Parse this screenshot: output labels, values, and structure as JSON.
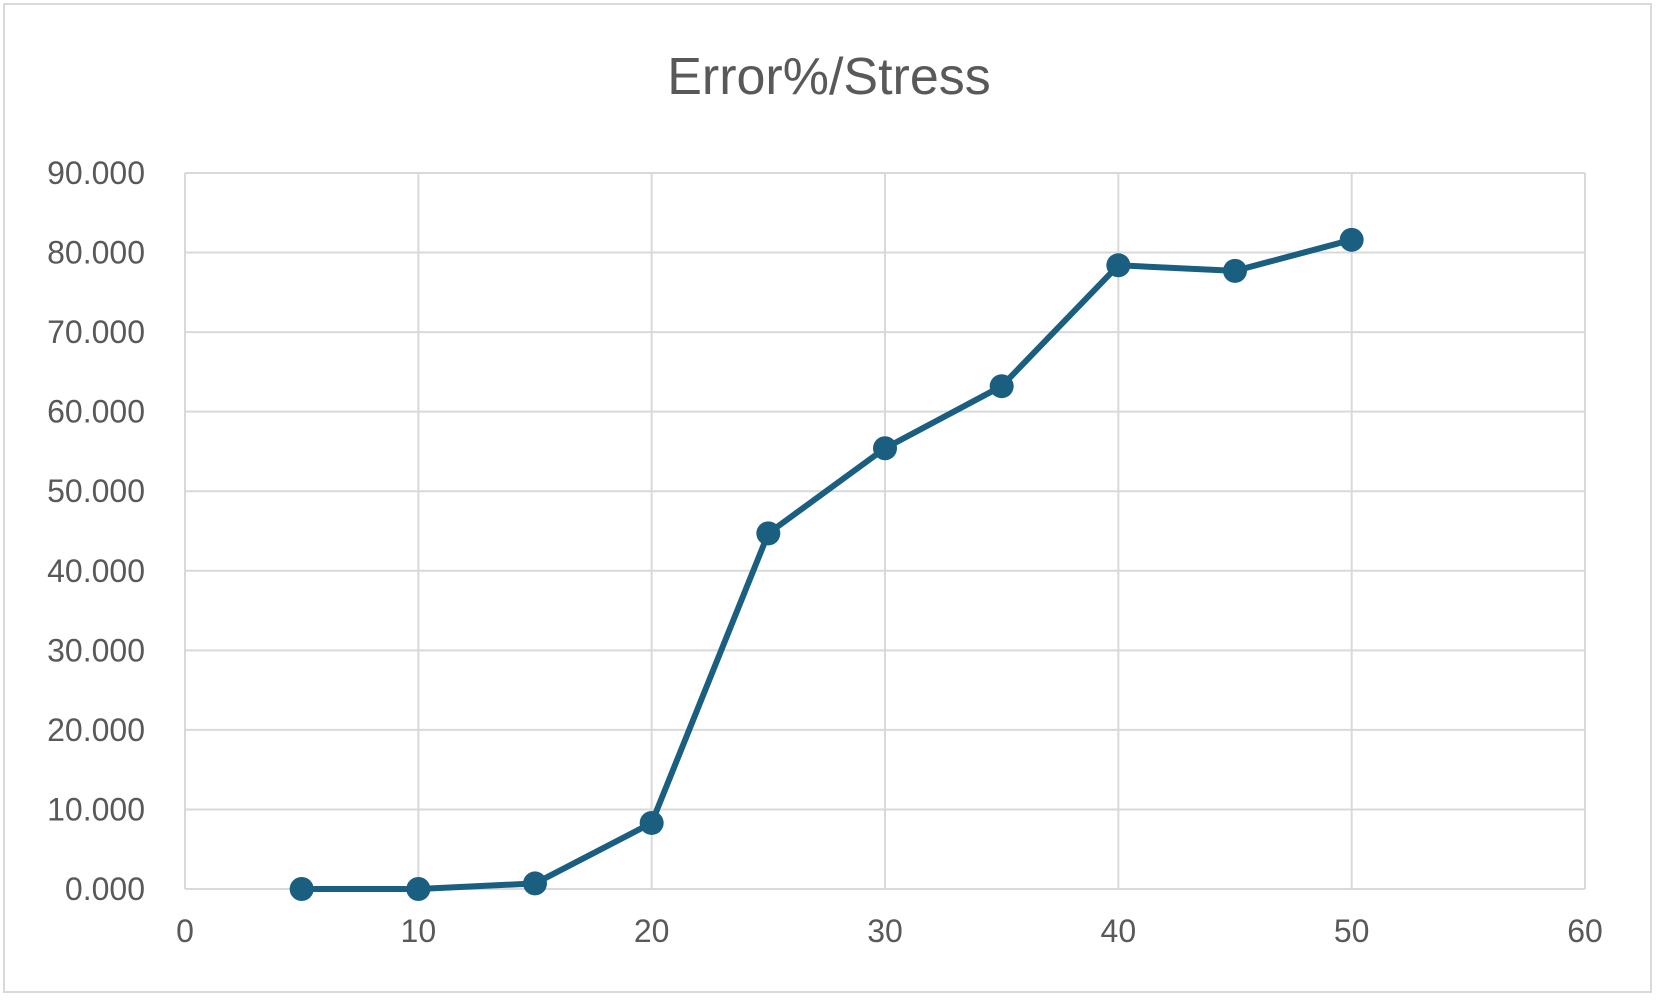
{
  "chart_data": {
    "type": "line",
    "title": "Error%/Stress",
    "xlabel": "",
    "ylabel": "",
    "xlim": [
      0,
      60
    ],
    "ylim": [
      0,
      90
    ],
    "x_ticks": [
      "0",
      "10",
      "20",
      "30",
      "40",
      "50",
      "60"
    ],
    "y_ticks": [
      "0.000",
      "10.000",
      "20.000",
      "30.000",
      "40.000",
      "50.000",
      "60.000",
      "70.000",
      "80.000",
      "90.000"
    ],
    "grid": true,
    "legend": "none",
    "series": [
      {
        "color": "#1a5e80",
        "x": [
          5,
          10,
          15,
          20,
          25,
          30,
          35,
          40,
          45,
          50
        ],
        "y": [
          0.0,
          0.0,
          0.7,
          8.3,
          44.7,
          55.4,
          63.2,
          78.4,
          77.7,
          81.6
        ]
      }
    ]
  }
}
